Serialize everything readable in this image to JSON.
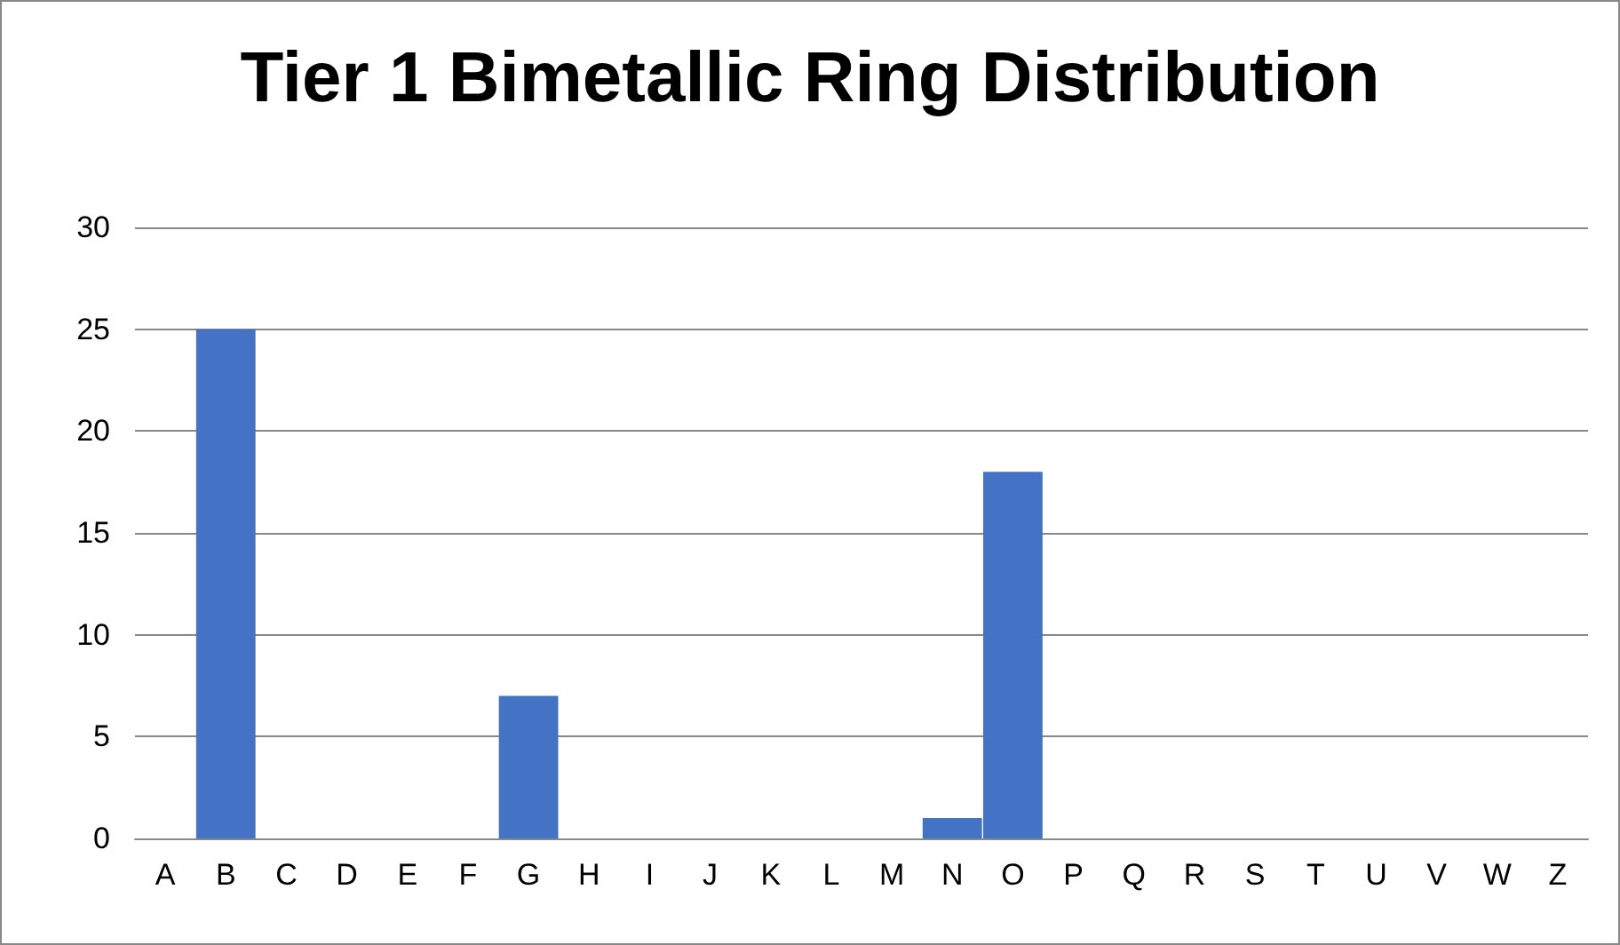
{
  "chart_data": {
    "type": "bar",
    "title": "Tier 1 Bimetallic Ring Distribution",
    "categories": [
      "A",
      "B",
      "C",
      "D",
      "E",
      "F",
      "G",
      "H",
      "I",
      "J",
      "K",
      "L",
      "M",
      "N",
      "O",
      "P",
      "Q",
      "R",
      "S",
      "T",
      "U",
      "V",
      "W",
      "Z"
    ],
    "values": [
      0,
      25,
      0,
      0,
      0,
      0,
      7,
      0,
      0,
      0,
      0,
      0,
      0,
      1,
      18,
      0,
      0,
      0,
      0,
      0,
      0,
      0,
      0,
      0
    ],
    "color": "#4472c4",
    "ylim": [
      0,
      30
    ],
    "yticks": [
      0,
      5,
      10,
      15,
      20,
      25,
      30
    ],
    "grid": "y"
  }
}
